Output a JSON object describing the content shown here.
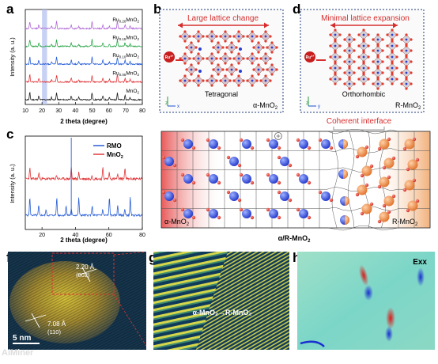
{
  "panels": {
    "a": "a",
    "b": "b",
    "c": "c",
    "d": "d",
    "f": "f",
    "g": "g",
    "h": "h"
  },
  "colors": {
    "black": "#222222",
    "red": "#e0383b",
    "blue": "#2a5fd6",
    "green": "#2ea84a",
    "purple": "#b06bd6",
    "highlight": "#b9c6f0",
    "ro_ion": "#2b3fd1",
    "o_ion": "#e53a30",
    "r_ion": "#f08a3c"
  },
  "chart_a": {
    "type": "line",
    "xlabel": "2 theta (degree)",
    "ylabel": "Intensity (a. u.)",
    "xlim": [
      10,
      80
    ],
    "xticks": [
      10,
      20,
      30,
      40,
      50,
      60,
      70,
      80
    ],
    "highlight_range": [
      20,
      23
    ],
    "peaks": [
      12.7,
      18.1,
      25.7,
      28.7,
      37.5,
      42.0,
      49.9,
      56.4,
      60.3,
      65.1,
      69.7,
      72.7
    ],
    "series": [
      {
        "name": "MnO2",
        "color": "#222222",
        "label_parts": [
          "MnO",
          "2",
          ""
        ]
      },
      {
        "name": "Ru0.05MnO2",
        "color": "#e0383b",
        "label_parts": [
          "Ru",
          "0.05",
          "MnO",
          "2"
        ]
      },
      {
        "name": "Ru0.10MnO2",
        "color": "#2a5fd6",
        "label_parts": [
          "Ru",
          "0.10",
          "MnO",
          "2"
        ]
      },
      {
        "name": "Ru0.15MnO2",
        "color": "#2ea84a",
        "label_parts": [
          "Ru",
          "0.15",
          "MnO",
          "2"
        ]
      },
      {
        "name": "Ru0.20MnO2",
        "color": "#b06bd6",
        "label_parts": [
          "Ru",
          "0.20",
          "MnO",
          "2"
        ]
      }
    ]
  },
  "chart_c": {
    "type": "line",
    "xlabel": "2 theta (degree)",
    "ylabel": "Intensity (a. u.)",
    "xlim": [
      10,
      80
    ],
    "xticks": [
      20,
      40,
      60,
      80
    ],
    "legend": [
      {
        "text": "RMO",
        "color": "#2a5fd6"
      },
      {
        "text": "MnO",
        "sub": "2",
        "color": "#e0383b"
      }
    ],
    "peaks_rmo": [
      12.7,
      18.0,
      22.4,
      28.8,
      34.4,
      37.5,
      42.0,
      50.0,
      56.3,
      60.3,
      65.3,
      69.5,
      72.8
    ],
    "peaks_mno2": [
      12.7,
      18.1,
      28.7,
      37.5,
      42.0,
      49.8,
      56.4,
      60.2,
      65.2,
      69.6
    ]
  },
  "panel_b": {
    "title": "Large lattice change",
    "ion": "Ru",
    "ion_charge": "4+",
    "structure": "Tetragonal",
    "phase": "α-MnO",
    "phase_sub": "2",
    "axis_z": "z",
    "axis_x": "x"
  },
  "panel_d": {
    "title": "Minimal lattice expansion",
    "ion": "Ru",
    "ion_charge": "4+",
    "structure": "Orthorhombic",
    "phase": "R-MnO",
    "phase_sub": "2",
    "axis_z": "z",
    "axis_y": "y"
  },
  "panel_e": {
    "interface_label": "Coherent interface",
    "left_phase": "α-MnO",
    "left_sub": "2",
    "right_phase": "R-MnO",
    "right_sub": "2",
    "caption": "α/R-MnO",
    "caption_sub": "2"
  },
  "panel_f": {
    "d1": "2.20 Å",
    "hkl1": "(002)",
    "d2": "7.08 Å",
    "hkl2": "(110)",
    "scale": "5 nm"
  },
  "panel_g": {
    "label": "α-MnO₂→R-MnO₂"
  },
  "panel_h": {
    "label": "Exx"
  },
  "watermark": "AiMiner"
}
